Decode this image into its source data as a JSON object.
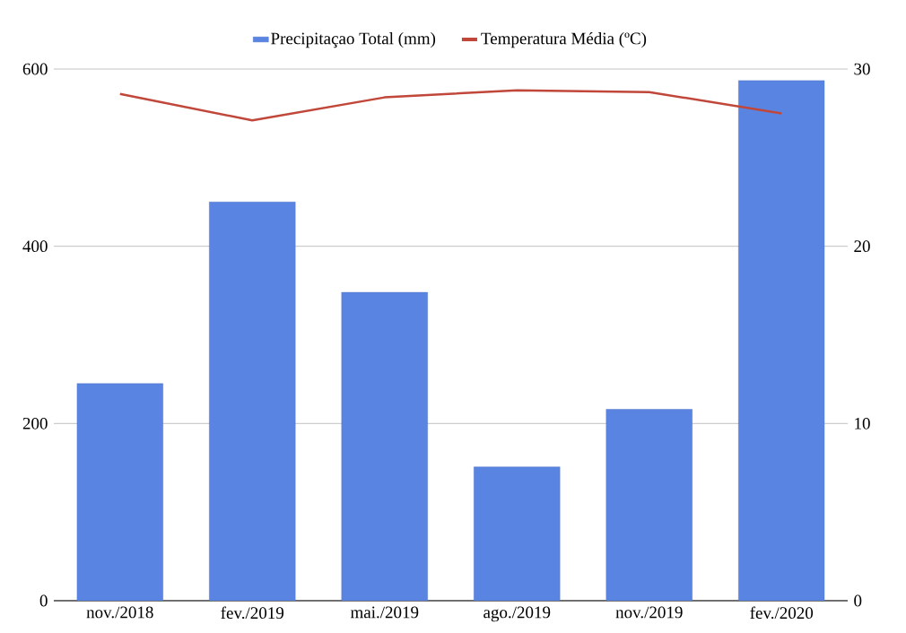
{
  "chart_data": {
    "type": "bar",
    "categories": [
      "nov./2018",
      "fev./2019",
      "mai./2019",
      "ago./2019",
      "nov./2019",
      "fev./2020"
    ],
    "series": [
      {
        "name": "Precipitaçao Total (mm)",
        "color": "#5a84e2",
        "values": [
          245,
          450,
          348,
          151,
          216,
          587
        ]
      },
      {
        "name": "Temperatura Média (ºC)",
        "type": "line",
        "axis": "y2",
        "color": "#c0473a",
        "values": [
          28.6,
          27.1,
          28.4,
          28.8,
          28.7,
          27.5
        ]
      }
    ],
    "ylim": [
      0,
      600
    ],
    "yticks": [
      0,
      200,
      400,
      600
    ],
    "y2lim": [
      0,
      30
    ],
    "y2ticks": [
      0,
      10,
      20,
      30
    ],
    "grid": "y",
    "legend": "top"
  }
}
